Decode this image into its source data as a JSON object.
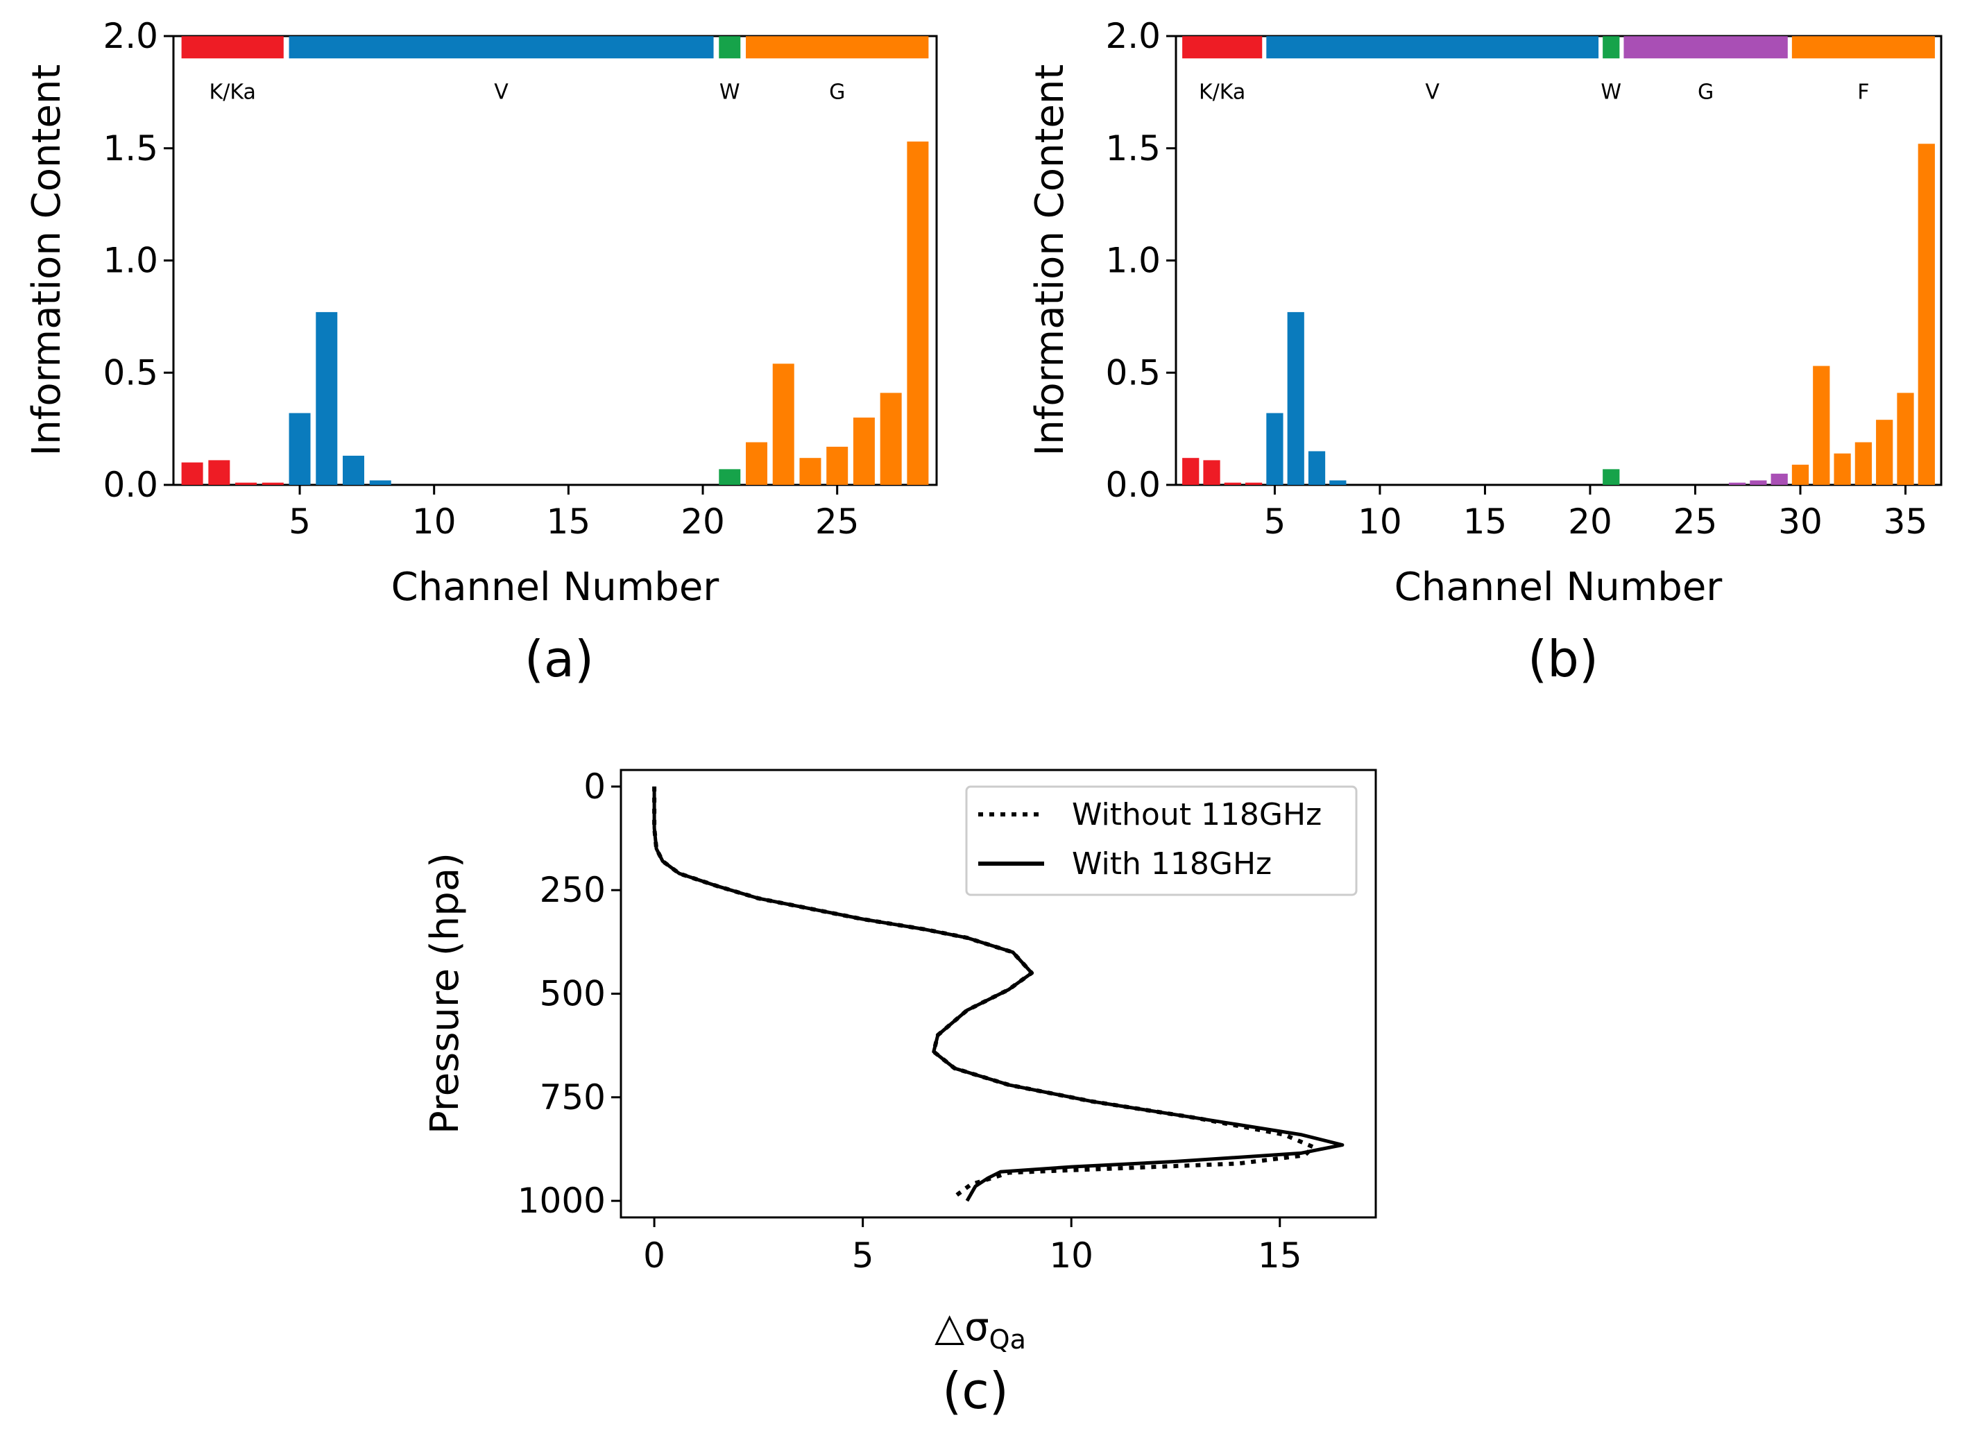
{
  "chart_data": [
    {
      "id": "a",
      "type": "bar",
      "panel_label": "(a)",
      "xlabel": "Channel Number",
      "ylabel": "Information Content",
      "xlim": [
        0.3,
        28.7
      ],
      "ylim": [
        0,
        2.0
      ],
      "xticks": [
        5,
        10,
        15,
        20,
        25
      ],
      "yticks": [
        0.0,
        0.5,
        1.0,
        1.5,
        2.0
      ],
      "ytick_labels": [
        "0.0",
        "0.5",
        "1.0",
        "1.5",
        "2.0"
      ],
      "colors": {
        "K/Ka": "#ee1c25",
        "V": "#0a7bbd",
        "W": "#16a34a",
        "G": "#ff7f00"
      },
      "bands": [
        {
          "label": "K/Ka",
          "start": 0.6,
          "end": 4.4,
          "color": "#ee1c25"
        },
        {
          "label": "V",
          "start": 4.6,
          "end": 20.4,
          "color": "#0a7bbd"
        },
        {
          "label": "W",
          "start": 20.6,
          "end": 21.4,
          "color": "#16a34a"
        },
        {
          "label": "G",
          "start": 21.6,
          "end": 28.4,
          "color": "#ff7f00"
        }
      ],
      "channels": [
        1,
        2,
        3,
        4,
        5,
        6,
        7,
        8,
        9,
        10,
        11,
        12,
        13,
        14,
        15,
        16,
        17,
        18,
        19,
        20,
        21,
        22,
        23,
        24,
        25,
        26,
        27,
        28
      ],
      "values": [
        0.1,
        0.11,
        0.01,
        0.01,
        0.32,
        0.77,
        0.13,
        0.02,
        0,
        0,
        0,
        0,
        0,
        0,
        0,
        0,
        0,
        0,
        0,
        0,
        0.07,
        0.19,
        0.54,
        0.12,
        0.17,
        0.3,
        0.41,
        1.53
      ],
      "groups": [
        "K/Ka",
        "K/Ka",
        "K/Ka",
        "K/Ka",
        "V",
        "V",
        "V",
        "V",
        "V",
        "V",
        "V",
        "V",
        "V",
        "V",
        "V",
        "V",
        "V",
        "V",
        "V",
        "V",
        "W",
        "G",
        "G",
        "G",
        "G",
        "G",
        "G",
        "G"
      ]
    },
    {
      "id": "b",
      "type": "bar",
      "panel_label": "(b)",
      "xlabel": "Channel Number",
      "ylabel": "Information Content",
      "xlim": [
        0.3,
        36.7
      ],
      "ylim": [
        0,
        2.0
      ],
      "xticks": [
        5,
        10,
        15,
        20,
        25,
        30,
        35
      ],
      "yticks": [
        0.0,
        0.5,
        1.0,
        1.5,
        2.0
      ],
      "ytick_labels": [
        "0.0",
        "0.5",
        "1.0",
        "1.5",
        "2.0"
      ],
      "colors": {
        "K/Ka": "#ee1c25",
        "V": "#0a7bbd",
        "W": "#16a34a",
        "G": "#a94fb5",
        "F": "#ff7f00"
      },
      "bands": [
        {
          "label": "K/Ka",
          "start": 0.6,
          "end": 4.4,
          "color": "#ee1c25"
        },
        {
          "label": "V",
          "start": 4.6,
          "end": 20.4,
          "color": "#0a7bbd"
        },
        {
          "label": "W",
          "start": 20.6,
          "end": 21.4,
          "color": "#16a34a"
        },
        {
          "label": "G",
          "start": 21.6,
          "end": 29.4,
          "color": "#a94fb5"
        },
        {
          "label": "F",
          "start": 29.6,
          "end": 36.4,
          "color": "#ff7f00"
        }
      ],
      "channels": [
        1,
        2,
        3,
        4,
        5,
        6,
        7,
        8,
        9,
        10,
        11,
        12,
        13,
        14,
        15,
        16,
        17,
        18,
        19,
        20,
        21,
        22,
        23,
        24,
        25,
        26,
        27,
        28,
        29,
        30,
        31,
        32,
        33,
        34,
        35,
        36
      ],
      "values": [
        0.12,
        0.11,
        0.01,
        0.01,
        0.32,
        0.77,
        0.15,
        0.02,
        0,
        0,
        0,
        0,
        0,
        0,
        0,
        0,
        0,
        0,
        0,
        0,
        0.07,
        0,
        0,
        0,
        0,
        0,
        0.01,
        0.02,
        0.05,
        0.09,
        0.53,
        0.14,
        0.19,
        0.29,
        0.41,
        1.52
      ],
      "groups": [
        "K/Ka",
        "K/Ka",
        "K/Ka",
        "K/Ka",
        "V",
        "V",
        "V",
        "V",
        "V",
        "V",
        "V",
        "V",
        "V",
        "V",
        "V",
        "V",
        "V",
        "V",
        "V",
        "V",
        "W",
        "G",
        "G",
        "G",
        "G",
        "G",
        "G",
        "G",
        "G",
        "F",
        "F",
        "F",
        "F",
        "F",
        "F",
        "F"
      ]
    },
    {
      "id": "c",
      "type": "line",
      "panel_label": "(c)",
      "xlabel_main": "△σ",
      "xlabel_sub": "Qa",
      "ylabel": "Pressure (hpa)",
      "xlim": [
        -0.8,
        17.3
      ],
      "ylim": [
        1040,
        -40
      ],
      "y_inverted": true,
      "xticks": [
        0,
        5,
        10,
        15
      ],
      "yticks": [
        0,
        250,
        500,
        750,
        1000
      ],
      "series": [
        {
          "name": "Without 118GHz",
          "style": "dotted",
          "points": [
            [
              0,
              0
            ],
            [
              0,
              50
            ],
            [
              0,
              100
            ],
            [
              0.05,
              150
            ],
            [
              0.2,
              180
            ],
            [
              0.6,
              210
            ],
            [
              1.5,
              240
            ],
            [
              2.5,
              270
            ],
            [
              3.5,
              290
            ],
            [
              5.0,
              320
            ],
            [
              6.5,
              345
            ],
            [
              7.5,
              365
            ],
            [
              8.6,
              400
            ],
            [
              9.05,
              450
            ],
            [
              8.5,
              490
            ],
            [
              7.5,
              540
            ],
            [
              6.8,
              600
            ],
            [
              6.7,
              640
            ],
            [
              7.2,
              680
            ],
            [
              8.5,
              720
            ],
            [
              10.5,
              760
            ],
            [
              13.0,
              800
            ],
            [
              15.1,
              840
            ],
            [
              15.8,
              870
            ],
            [
              15.6,
              890
            ],
            [
              14.0,
              910
            ],
            [
              11.0,
              922
            ],
            [
              8.5,
              932
            ],
            [
              8.1,
              945
            ],
            [
              7.6,
              960
            ],
            [
              7.2,
              990
            ]
          ]
        },
        {
          "name": "With 118GHz",
          "style": "solid",
          "points": [
            [
              0,
              0
            ],
            [
              0,
              50
            ],
            [
              0,
              100
            ],
            [
              0.05,
              150
            ],
            [
              0.2,
              180
            ],
            [
              0.6,
              210
            ],
            [
              1.5,
              240
            ],
            [
              2.5,
              270
            ],
            [
              3.5,
              290
            ],
            [
              5.0,
              320
            ],
            [
              6.5,
              345
            ],
            [
              7.5,
              365
            ],
            [
              8.6,
              400
            ],
            [
              9.05,
              450
            ],
            [
              8.5,
              490
            ],
            [
              7.5,
              540
            ],
            [
              6.8,
              600
            ],
            [
              6.7,
              640
            ],
            [
              7.2,
              680
            ],
            [
              8.5,
              720
            ],
            [
              10.5,
              760
            ],
            [
              13.0,
              800
            ],
            [
              15.5,
              840
            ],
            [
              16.5,
              865
            ],
            [
              15.5,
              885
            ],
            [
              12.5,
              905
            ],
            [
              10.0,
              918
            ],
            [
              8.3,
              930
            ],
            [
              8.0,
              945
            ],
            [
              7.7,
              965
            ],
            [
              7.5,
              1000
            ]
          ]
        }
      ],
      "legend": [
        "Without 118GHz",
        "With 118GHz"
      ],
      "legend_position": "top-right"
    }
  ]
}
